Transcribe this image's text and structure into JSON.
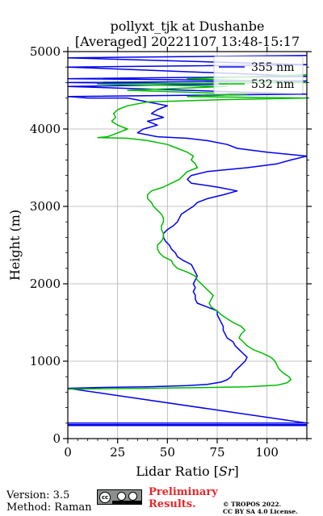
{
  "chart_data": {
    "type": "line",
    "title": "pollyxt_tjk at Dushanbe",
    "subtitle": "[Averaged] 20221107 13:48-15:17",
    "xlabel": "Lidar Ratio [Sr]",
    "xlabel_prefix": "Lidar Ratio [",
    "xlabel_unit": "Sr",
    "xlabel_suffix": "]",
    "ylabel": "Height (m)",
    "xlim": [
      0,
      120
    ],
    "ylim": [
      0,
      5000
    ],
    "xticks": [
      0,
      25,
      50,
      75,
      100
    ],
    "yticks": [
      0,
      1000,
      2000,
      3000,
      4000,
      5000
    ],
    "grid": true,
    "legend_position": "top-right",
    "series": [
      {
        "name": "355 nm",
        "color": "#0000ee",
        "points": [
          [
            0,
            170
          ],
          [
            120,
            170
          ],
          [
            120,
            180
          ],
          [
            0,
            180
          ],
          [
            0,
            200
          ],
          [
            120,
            200
          ],
          [
            0,
            650
          ],
          [
            15,
            660
          ],
          [
            40,
            670
          ],
          [
            60,
            685
          ],
          [
            70,
            700
          ],
          [
            77,
            730
          ],
          [
            80,
            760
          ],
          [
            82,
            800
          ],
          [
            83,
            850
          ],
          [
            85,
            900
          ],
          [
            87,
            950
          ],
          [
            89,
            1000
          ],
          [
            90,
            1050
          ],
          [
            88,
            1100
          ],
          [
            86,
            1150
          ],
          [
            84,
            1200
          ],
          [
            83,
            1250
          ],
          [
            80,
            1300
          ],
          [
            79,
            1350
          ],
          [
            78,
            1400
          ],
          [
            78,
            1450
          ],
          [
            77,
            1500
          ],
          [
            76,
            1550
          ],
          [
            75,
            1600
          ],
          [
            75,
            1650
          ],
          [
            70,
            1700
          ],
          [
            65,
            1750
          ],
          [
            64,
            1800
          ],
          [
            64,
            1850
          ],
          [
            63,
            1900
          ],
          [
            64,
            1950
          ],
          [
            63,
            2000
          ],
          [
            64,
            2050
          ],
          [
            65,
            2100
          ],
          [
            64,
            2150
          ],
          [
            63,
            2200
          ],
          [
            62,
            2250
          ],
          [
            58,
            2300
          ],
          [
            55,
            2350
          ],
          [
            54,
            2400
          ],
          [
            52,
            2450
          ],
          [
            51,
            2500
          ],
          [
            49,
            2550
          ],
          [
            48,
            2600
          ],
          [
            48,
            2650
          ],
          [
            50,
            2700
          ],
          [
            53,
            2750
          ],
          [
            55,
            2800
          ],
          [
            56,
            2850
          ],
          [
            57,
            2900
          ],
          [
            60,
            2950
          ],
          [
            63,
            3000
          ],
          [
            65,
            3050
          ],
          [
            70,
            3100
          ],
          [
            78,
            3150
          ],
          [
            85,
            3200
          ],
          [
            75,
            3250
          ],
          [
            62,
            3300
          ],
          [
            60,
            3350
          ],
          [
            62,
            3400
          ],
          [
            70,
            3450
          ],
          [
            90,
            3500
          ],
          [
            105,
            3550
          ],
          [
            112,
            3600
          ],
          [
            120,
            3650
          ],
          [
            100,
            3700
          ],
          [
            85,
            3750
          ],
          [
            80,
            3800
          ],
          [
            70,
            3850
          ],
          [
            60,
            3880
          ],
          [
            45,
            3900
          ],
          [
            35,
            3950
          ],
          [
            38,
            4000
          ],
          [
            45,
            4050
          ],
          [
            40,
            4100
          ],
          [
            48,
            4150
          ],
          [
            42,
            4200
          ],
          [
            45,
            4250
          ],
          [
            50,
            4300
          ],
          [
            40,
            4350
          ],
          [
            30,
            4400
          ],
          [
            10,
            4400
          ],
          [
            0,
            4420
          ],
          [
            120,
            4450
          ],
          [
            60,
            4500
          ],
          [
            0,
            4550
          ],
          [
            80,
            4580
          ],
          [
            0,
            4600
          ],
          [
            120,
            4620
          ],
          [
            0,
            4650
          ],
          [
            120,
            4680
          ],
          [
            0,
            4800
          ],
          [
            120,
            4830
          ],
          [
            0,
            4920
          ],
          [
            120,
            4950
          ]
        ]
      },
      {
        "name": "532 nm",
        "color": "#00bb00",
        "points": [
          [
            0,
            640
          ],
          [
            40,
            650
          ],
          [
            70,
            660
          ],
          [
            90,
            670
          ],
          [
            105,
            690
          ],
          [
            110,
            720
          ],
          [
            112,
            760
          ],
          [
            111,
            800
          ],
          [
            108,
            850
          ],
          [
            106,
            900
          ],
          [
            105,
            950
          ],
          [
            104,
            1000
          ],
          [
            102,
            1050
          ],
          [
            98,
            1100
          ],
          [
            93,
            1150
          ],
          [
            90,
            1200
          ],
          [
            88,
            1250
          ],
          [
            86,
            1300
          ],
          [
            87,
            1350
          ],
          [
            89,
            1400
          ],
          [
            87,
            1450
          ],
          [
            83,
            1500
          ],
          [
            80,
            1550
          ],
          [
            77,
            1600
          ],
          [
            75,
            1650
          ],
          [
            72,
            1700
          ],
          [
            71,
            1750
          ],
          [
            72,
            1800
          ],
          [
            73,
            1850
          ],
          [
            71,
            1900
          ],
          [
            69,
            1950
          ],
          [
            67,
            2000
          ],
          [
            65,
            2050
          ],
          [
            64,
            2100
          ],
          [
            60,
            2150
          ],
          [
            55,
            2200
          ],
          [
            53,
            2250
          ],
          [
            52,
            2300
          ],
          [
            48,
            2350
          ],
          [
            46,
            2400
          ],
          [
            45,
            2450
          ],
          [
            45,
            2500
          ],
          [
            47,
            2550
          ],
          [
            48,
            2600
          ],
          [
            48,
            2650
          ],
          [
            47,
            2700
          ],
          [
            47,
            2750
          ],
          [
            48,
            2800
          ],
          [
            48,
            2850
          ],
          [
            47,
            2900
          ],
          [
            45,
            2950
          ],
          [
            43,
            3000
          ],
          [
            42,
            3050
          ],
          [
            40,
            3100
          ],
          [
            40,
            3150
          ],
          [
            42,
            3200
          ],
          [
            48,
            3250
          ],
          [
            52,
            3300
          ],
          [
            56,
            3350
          ],
          [
            58,
            3400
          ],
          [
            60,
            3450
          ],
          [
            65,
            3500
          ],
          [
            64,
            3550
          ],
          [
            62,
            3600
          ],
          [
            63,
            3650
          ],
          [
            60,
            3700
          ],
          [
            55,
            3750
          ],
          [
            50,
            3800
          ],
          [
            40,
            3850
          ],
          [
            30,
            3880
          ],
          [
            15,
            3890
          ],
          [
            20,
            3900
          ],
          [
            25,
            3950
          ],
          [
            30,
            4000
          ],
          [
            25,
            4050
          ],
          [
            22,
            4100
          ],
          [
            24,
            4150
          ],
          [
            23,
            4200
          ],
          [
            25,
            4250
          ],
          [
            30,
            4300
          ],
          [
            40,
            4350
          ],
          [
            80,
            4380
          ],
          [
            120,
            4400
          ],
          [
            60,
            4420
          ],
          [
            90,
            4450
          ],
          [
            30,
            4500
          ],
          [
            80,
            4550
          ],
          [
            15,
            4580
          ],
          [
            120,
            4600
          ],
          [
            60,
            4650
          ],
          [
            120,
            4700
          ]
        ]
      }
    ]
  },
  "footer": {
    "version": "Version: 3.5",
    "method": "Method: Raman",
    "preliminary": "Preliminary\nResults.",
    "preliminary_line1": "Preliminary",
    "preliminary_line2": "Results.",
    "copyright_line1": "© TROPOS 2022.",
    "copyright_line2": "CC BY SA 4.0 License.",
    "license_badge": "cc-by-sa-icon"
  }
}
